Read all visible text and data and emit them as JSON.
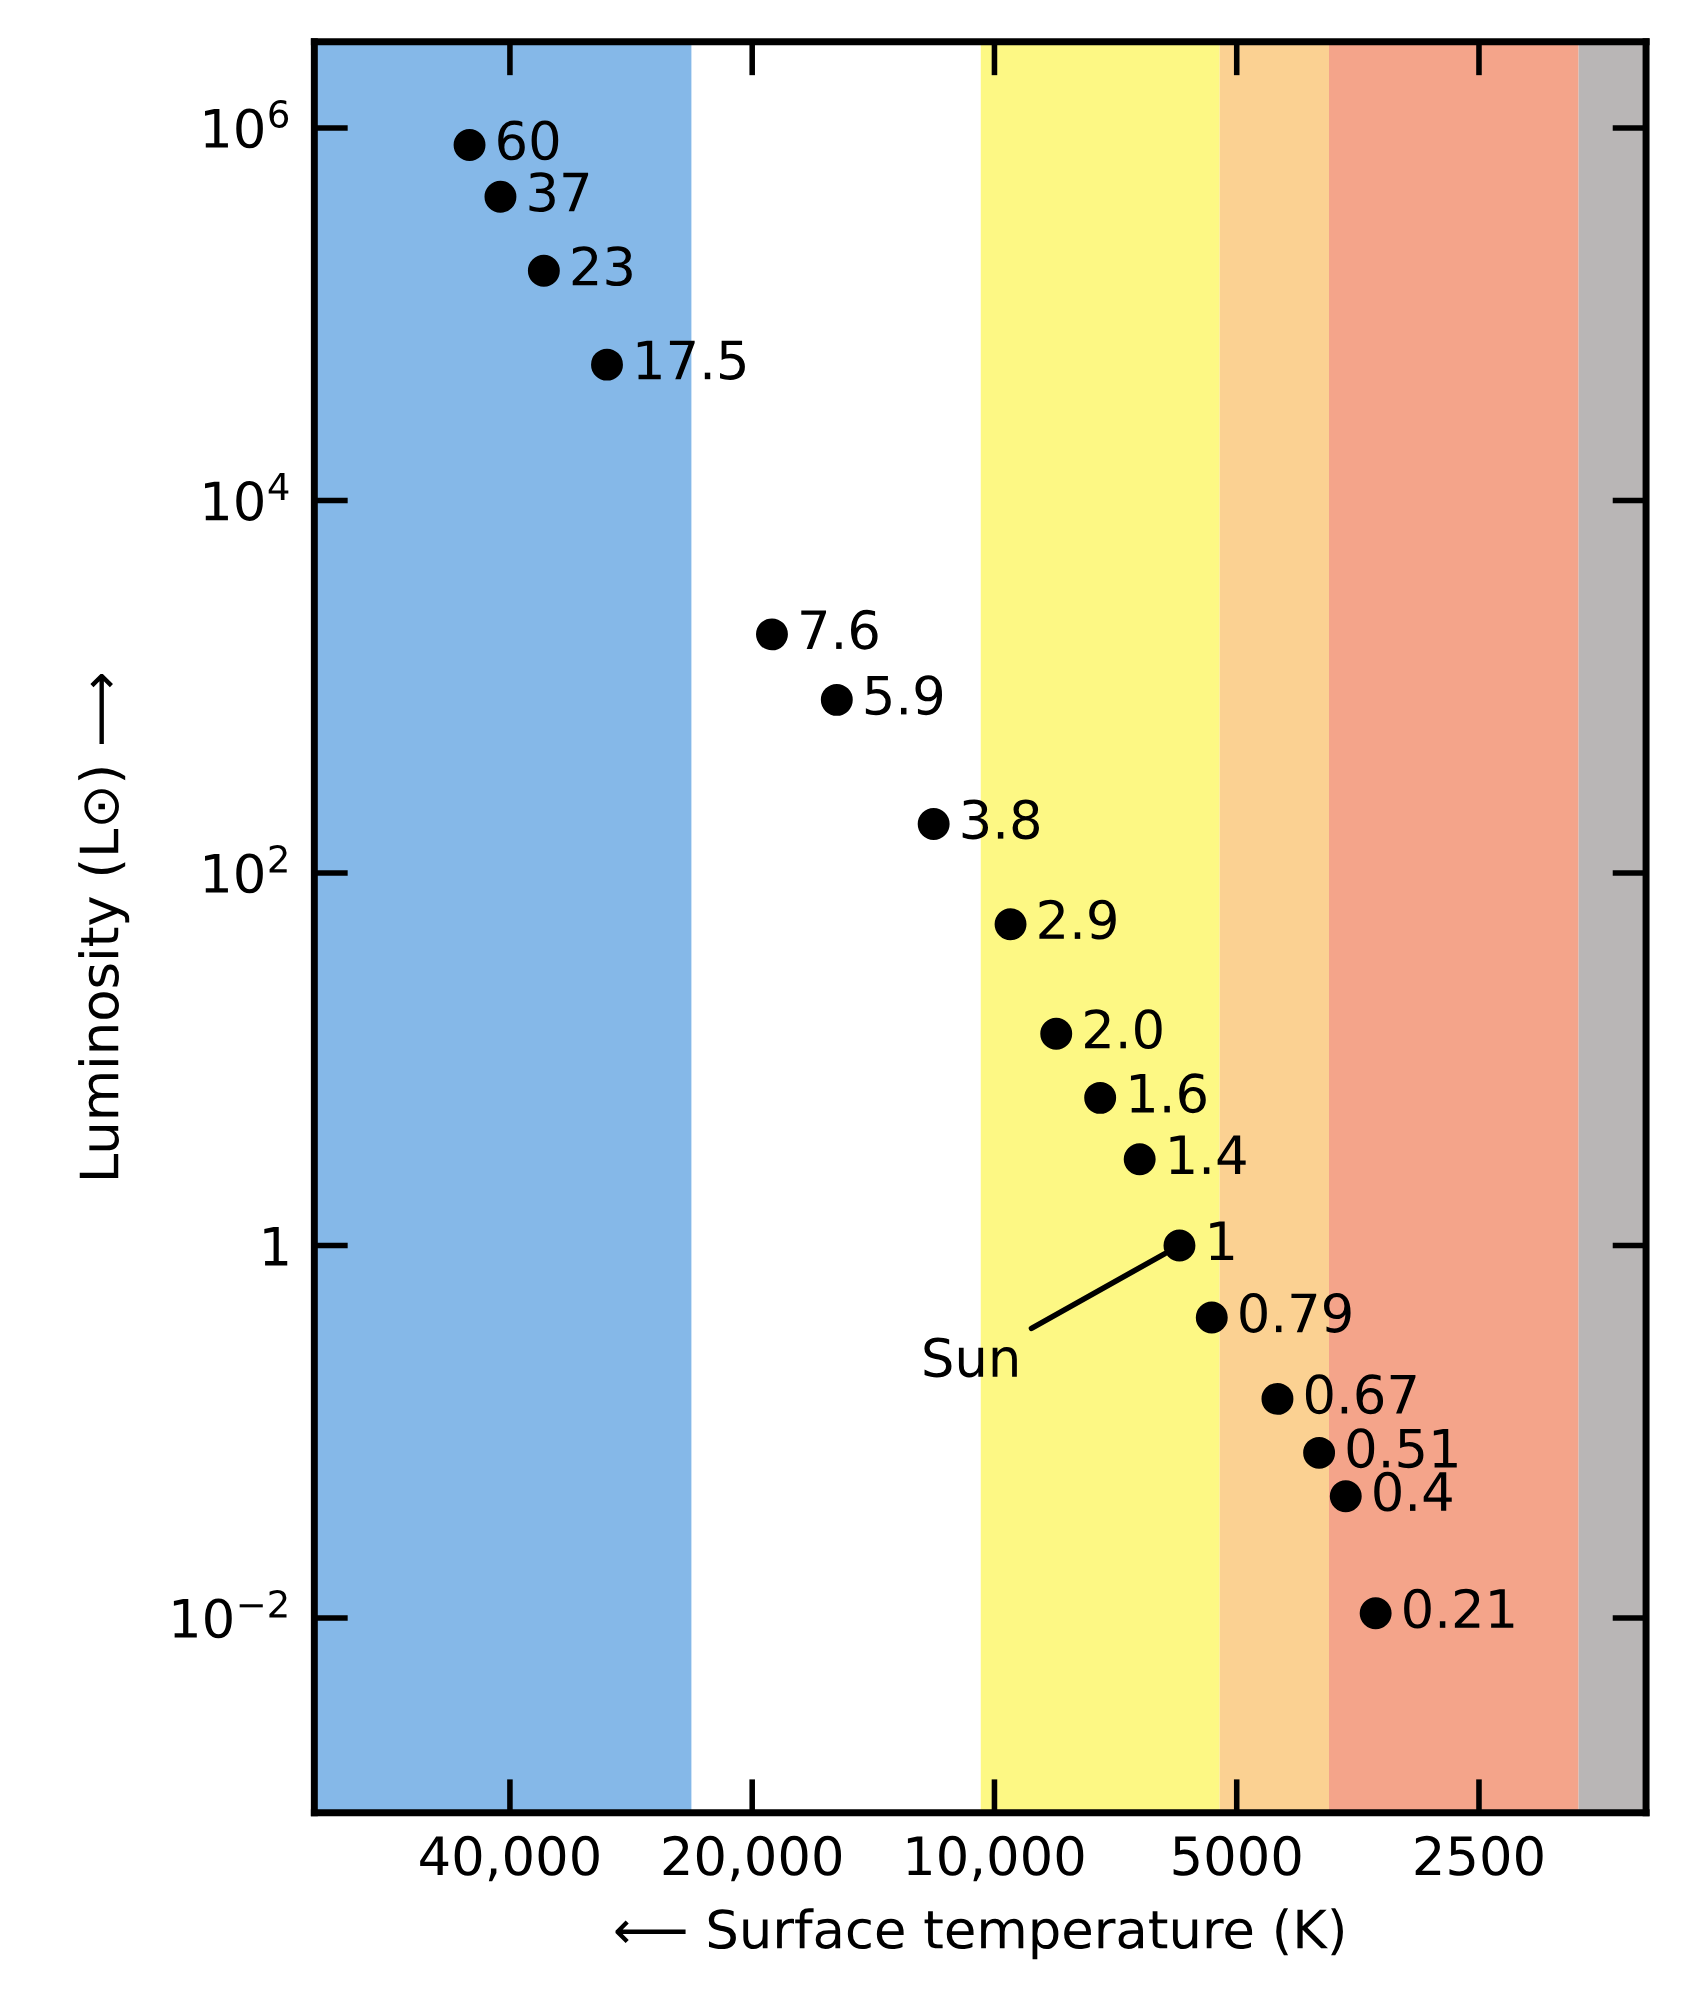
{
  "chart_data": {
    "type": "scatter",
    "xlabel": "⟵ Surface temperature (K)",
    "ylabel": "Luminosity (L⊙) ⟶",
    "log": "xy",
    "xlim": [
      70000,
      1550
    ],
    "ylim": [
      0.0009,
      2900000
    ],
    "xticks": [
      {
        "value": 40000,
        "label": "40,000"
      },
      {
        "value": 20000,
        "label": "20,000"
      },
      {
        "value": 10000,
        "label": "10,000"
      },
      5000,
      2500
    ],
    "yticks": [
      {
        "value": 0.01,
        "label": "10$^{−2}$"
      },
      1,
      {
        "value": 100,
        "label": "10$^{2}$"
      },
      {
        "value": 10000,
        "label": "10$^{4}$"
      },
      {
        "value": 1000000,
        "label": "10$^{6}$"
      }
    ],
    "grid": false,
    "marker": "circle",
    "bands": [
      {
        "axis": "x",
        "from": 70000,
        "to": 23800,
        "color": "#85b8e8"
      },
      {
        "axis": "x",
        "from": 10400,
        "to": 5250,
        "color": "#fdf884"
      },
      {
        "axis": "x",
        "from": 5250,
        "to": 3840,
        "color": "#fbd192"
      },
      {
        "axis": "x",
        "from": 3840,
        "to": 1880,
        "color": "#f4a48a"
      },
      {
        "axis": "x",
        "from": 1880,
        "to": 1550,
        "color": "#b9b6b6"
      }
    ],
    "series": [
      {
        "color": "#000000",
        "x": [
          44900,
          41100,
          36300,
          30300,
          18900,
          15700,
          11900,
          9550,
          8380,
          7390,
          6600,
          5890,
          5370,
          4450,
          3950,
          3660,
          3360
        ],
        "values": [
          810000,
          427000,
          171000,
          53600,
          1910,
          850,
          183,
          53,
          13.7,
          6.2,
          2.9,
          1,
          0.41,
          0.15,
          0.077,
          0.045,
          0.0106
        ]
      }
    ],
    "annotations": [
      {
        "text": "60",
        "x": 44900,
        "y": 810000
      },
      {
        "text": "37",
        "x": 41100,
        "y": 427000
      },
      {
        "text": "23",
        "x": 36300,
        "y": 171000
      },
      {
        "text": "17.5",
        "x": 30300,
        "y": 53600
      },
      {
        "text": "7.6",
        "x": 18900,
        "y": 1910
      },
      {
        "text": "5.9",
        "x": 15700,
        "y": 850
      },
      {
        "text": "3.8",
        "x": 11900,
        "y": 183
      },
      {
        "text": "2.9",
        "x": 9550,
        "y": 53
      },
      {
        "text": "2.0",
        "x": 8380,
        "y": 13.7
      },
      {
        "text": "1.6",
        "x": 7390,
        "y": 6.2
      },
      {
        "text": "1.4",
        "x": 6600,
        "y": 2.9
      },
      {
        "text": "1",
        "x": 5890,
        "y": 1
      },
      {
        "text": "0.79",
        "x": 5370,
        "y": 0.41
      },
      {
        "text": "0.67",
        "x": 4450,
        "y": 0.15
      },
      {
        "text": "0.51",
        "x": 3950,
        "y": 0.077
      },
      {
        "text": "0.4",
        "x": 3660,
        "y": 0.045
      },
      {
        "text": "0.21",
        "x": 3360,
        "y": 0.0106
      },
      {
        "text": "Sun",
        "x": 5890,
        "y": 1
      }
    ]
  }
}
